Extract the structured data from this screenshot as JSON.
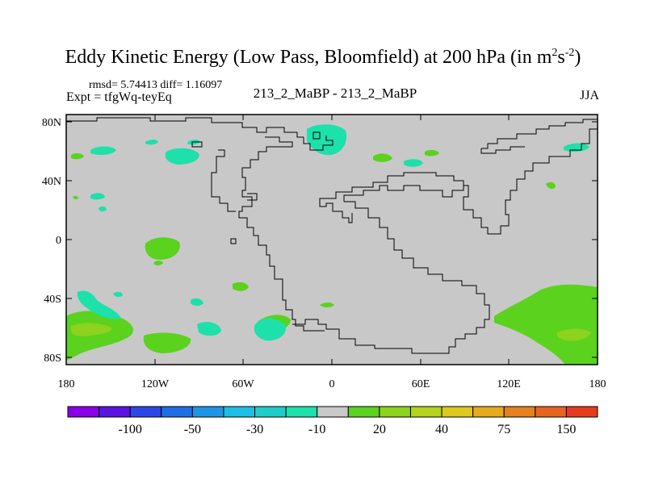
{
  "title": {
    "main": "Eddy Kinetic Energy (Low Pass, Bloomfield) at 200 hPa (in m",
    "sup1": "2",
    "mid": "s",
    "sup2": "-2",
    "end": ")"
  },
  "stats": "rmsd= 5.74413 diff= 1.16097",
  "expt": "Expt = tfgWq-teyEq",
  "center_label": "213_2_MaBP - 213_2_MaBP",
  "season": "JJA",
  "axes": {
    "lat_ticks": [
      "80N",
      "40N",
      "0",
      "40S",
      "80S"
    ],
    "lon_ticks": [
      "180",
      "120W",
      "60W",
      "0",
      "60E",
      "120E",
      "180"
    ]
  },
  "colorbar": {
    "colors": [
      "#8a00e6",
      "#5a14e0",
      "#2d46e6",
      "#1e6ee6",
      "#1e96e6",
      "#1ebee6",
      "#1ecdc8",
      "#1ee0aa",
      "#c8c8c8",
      "#5ad21e",
      "#8cd21e",
      "#b4d21e",
      "#dcc81e",
      "#e6aa1e",
      "#e6821e",
      "#e6641e",
      "#e63c1e"
    ],
    "labels": [
      "-100",
      "-50",
      "-30",
      "-10",
      "20",
      "40",
      "75",
      "150"
    ],
    "label_positions": [
      1.5,
      3.5,
      5.5,
      7.5,
      9.5,
      11.5,
      13.5,
      15.5
    ]
  },
  "field_colors": {
    "background": "#c8c8c8",
    "positive_low": "#5ad21e",
    "positive_mid": "#8cd21e",
    "negative_low": "#1ee0aa",
    "coast": "#000000"
  }
}
